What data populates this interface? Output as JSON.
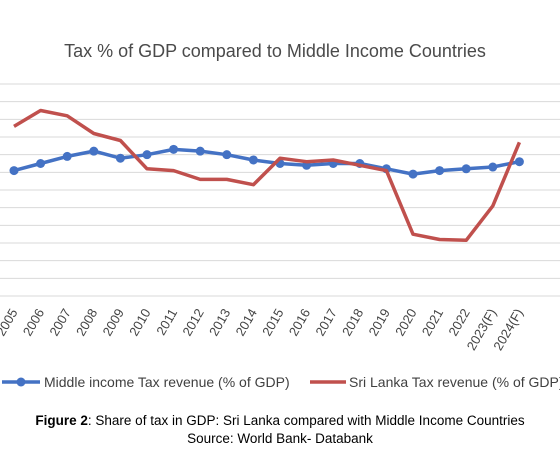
{
  "chart_data": {
    "type": "line",
    "title": "Tax % of GDP compared to Middle Income Countries",
    "categories": [
      "2005",
      "2006",
      "2007",
      "2008",
      "2009",
      "2010",
      "2011",
      "2012",
      "2013",
      "2014",
      "2015",
      "2016",
      "2017",
      "2018",
      "2019",
      "2020",
      "2021",
      "2022",
      "2023(F)",
      "2024(F)"
    ],
    "series": [
      {
        "name": "Middle income Tax revenue (% of GDP)",
        "color": "#4472C4",
        "marker": "circle",
        "values": [
          13.1,
          13.5,
          13.9,
          14.2,
          13.8,
          14.0,
          14.3,
          14.2,
          14.0,
          13.7,
          13.5,
          13.4,
          13.5,
          13.5,
          13.2,
          12.9,
          13.1,
          13.2,
          13.3,
          13.6
        ]
      },
      {
        "name": "Sri Lanka Tax revenue (% of GDP)",
        "color": "#C0504D",
        "marker": "none",
        "values": [
          15.6,
          16.5,
          16.2,
          15.2,
          14.8,
          13.2,
          13.1,
          12.6,
          12.6,
          12.3,
          13.8,
          13.6,
          13.7,
          13.4,
          13.1,
          9.5,
          9.2,
          9.15,
          11.1,
          14.7
        ]
      }
    ],
    "ylim": [
      6,
      18
    ],
    "grid": true,
    "legend_position": "bottom"
  },
  "caption": {
    "figure_label": "Figure 2",
    "figure_text": ": Share of tax in GDP: Sri Lanka compared with Middle Income Countries",
    "source": "Source: World Bank- Databank"
  }
}
